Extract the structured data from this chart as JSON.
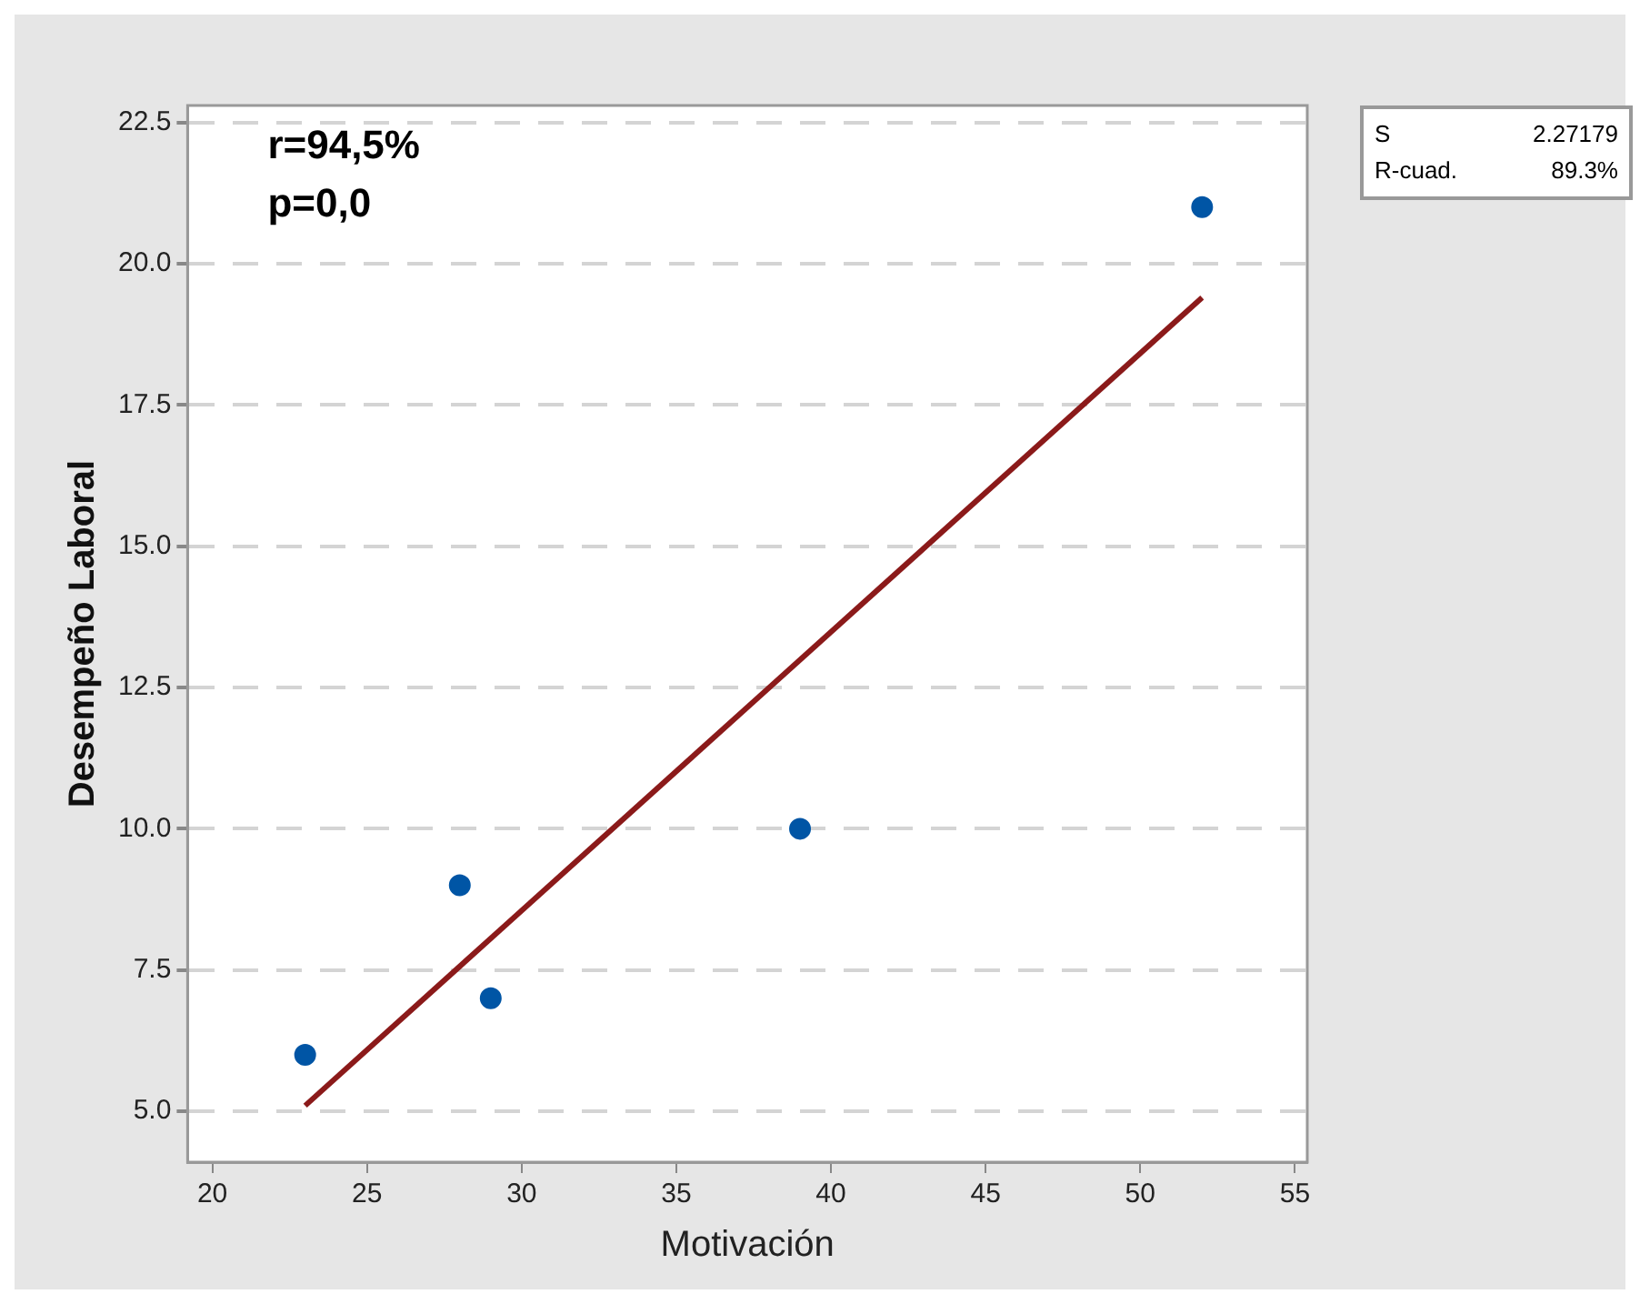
{
  "chart_data": {
    "type": "scatter",
    "xlabel": "Motivación",
    "ylabel": "Desempeño Laboral",
    "series": [
      {
        "type": "scatter",
        "color": "#0055a5",
        "x": [
          23,
          28,
          29,
          39,
          52
        ],
        "values": [
          6,
          9,
          7,
          10,
          21
        ]
      },
      {
        "type": "line",
        "color": "#8b1a1a",
        "x": [
          23,
          52
        ],
        "values": [
          5.1,
          19.4
        ],
        "marker": "none"
      }
    ],
    "xlim": [
      19.2,
      55.4
    ],
    "xticks": [
      20,
      25,
      30,
      35,
      40,
      45,
      50,
      55
    ],
    "ylim": [
      4.1,
      22.8
    ],
    "yticks": [
      {
        "value": 5,
        "label": "5.0"
      },
      {
        "value": 7.5,
        "label": "7.5"
      },
      {
        "value": 10,
        "label": "10.0"
      },
      {
        "value": 12.5,
        "label": "12.5"
      },
      {
        "value": 15,
        "label": "15.0"
      },
      {
        "value": 17.5,
        "label": "17.5"
      },
      {
        "value": 20,
        "label": "20.0"
      },
      {
        "value": 22.5,
        "label": "22.5"
      }
    ],
    "grid": "y",
    "marker": "circle",
    "legend": false,
    "annotations": [
      "r=94,5%",
      "p=0,0",
      "S",
      "2.27179",
      "R-cuad.",
      "89.3%"
    ]
  }
}
